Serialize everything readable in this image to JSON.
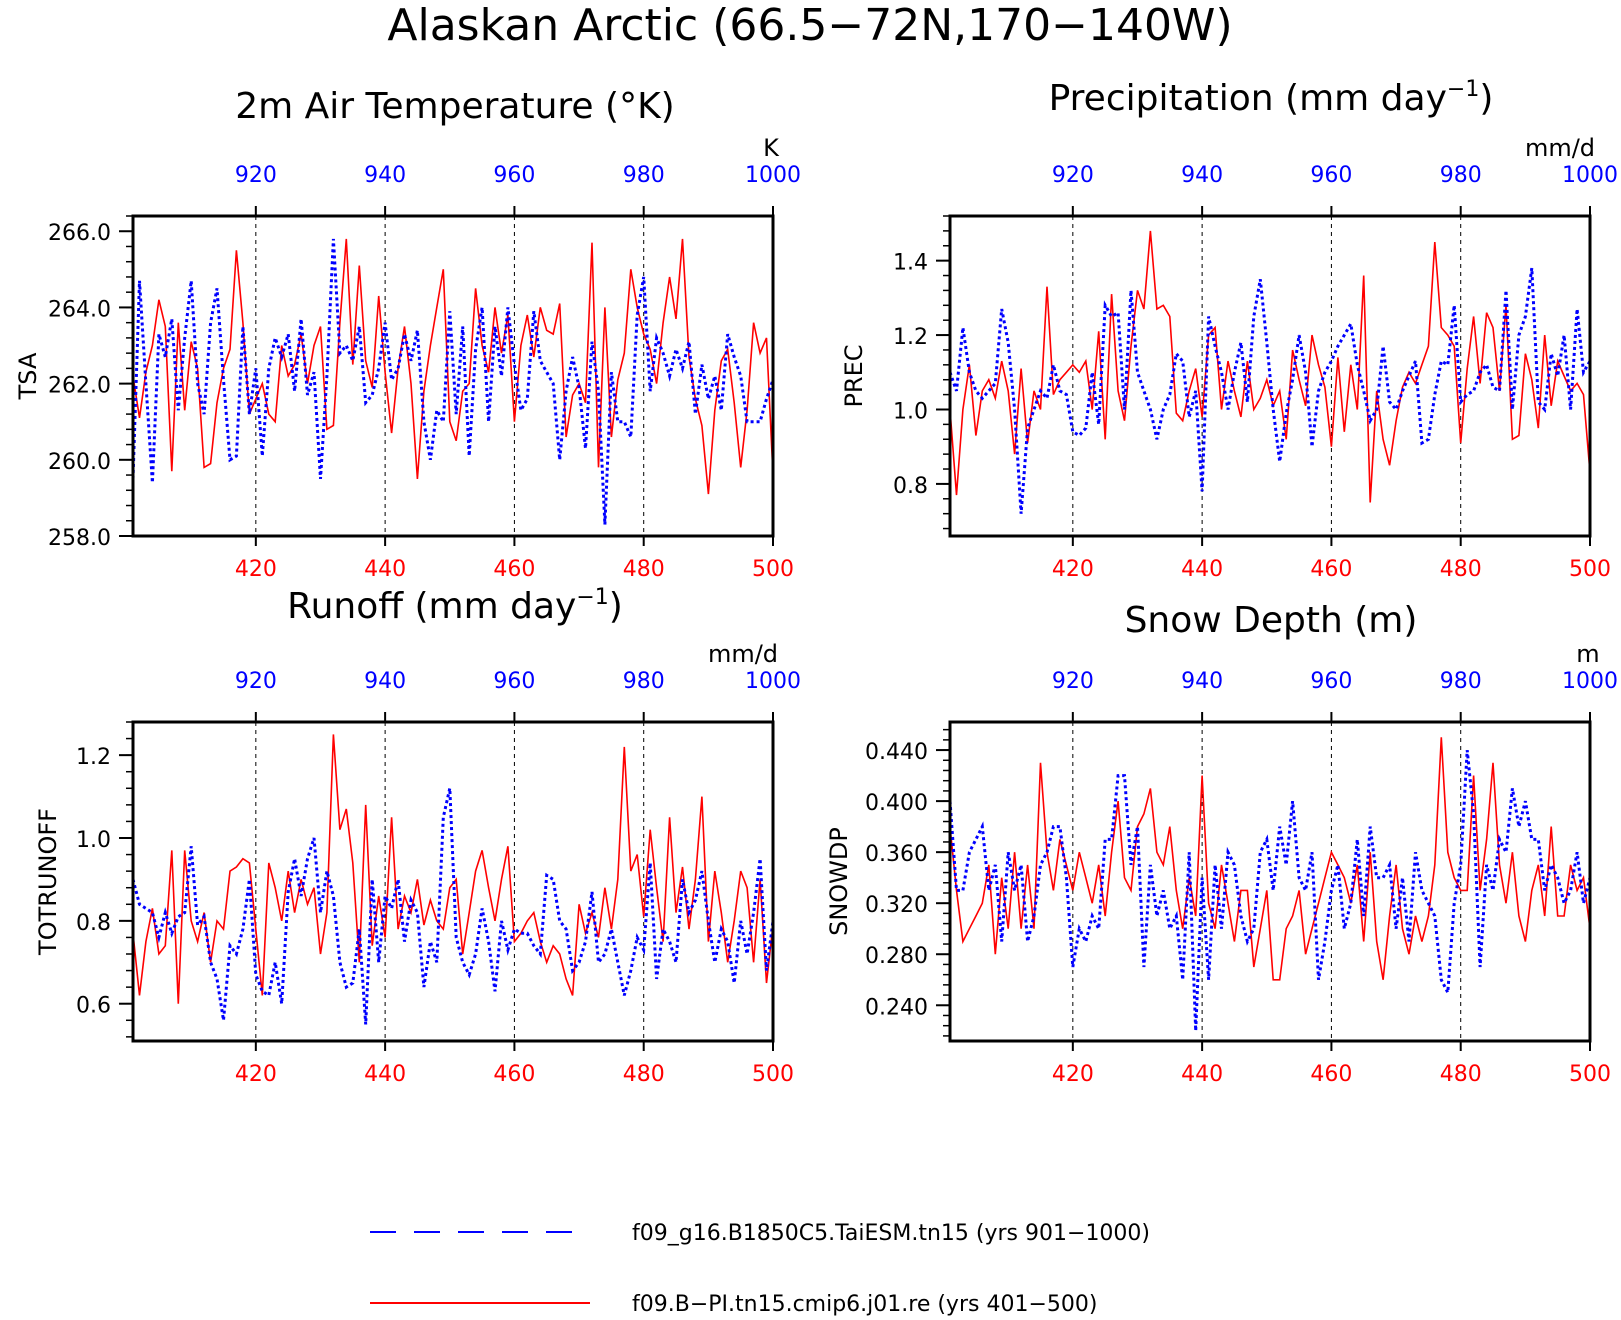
{
  "figure_title": "Alaskan Arctic (66.5−72N,170−140W)",
  "colors": {
    "red_series": "#ff0000",
    "blue_series": "#0000ff",
    "frame": "#000000"
  },
  "legend": [
    {
      "label": "f09_g16.B1850C5.TaiESM.tn15 (yrs 901−1000)",
      "color": "#0000ff",
      "style": "dashed"
    },
    {
      "label": "f09.B−PI.tn15.cmip6.j01.re (yrs 401−500)",
      "color": "#ff0000",
      "style": "solid"
    }
  ],
  "chart_data": [
    {
      "type": "line",
      "title": "2m Air Temperature (°K)",
      "ylabel": "TSA",
      "unit_label": "K",
      "ylim": [
        258.0,
        266.4
      ],
      "yticks": [
        258.0,
        260.0,
        262.0,
        264.0,
        266.0
      ],
      "ytick_labels": [
        "258.0",
        "260.0",
        "262.0",
        "264.0",
        "266.0"
      ],
      "bottom_axis": {
        "range": [
          401,
          500
        ],
        "ticks": [
          420,
          440,
          460,
          480,
          500
        ],
        "color": "#ff0000"
      },
      "top_axis": {
        "range": [
          901,
          1000
        ],
        "ticks": [
          920,
          940,
          960,
          980,
          1000
        ],
        "color": "#0000ff"
      },
      "series": [
        {
          "name": "f09.B−PI.tn15.cmip6.j01.re (yrs 401−500)",
          "color": "#ff0000",
          "style": "solid",
          "values": [
            262.2,
            261.1,
            262.3,
            263.0,
            264.2,
            263.5,
            259.7,
            263.6,
            261.3,
            263.1,
            262.4,
            259.8,
            259.9,
            261.5,
            262.4,
            262.9,
            265.5,
            263.6,
            261.2,
            261.6,
            262.0,
            261.2,
            261.0,
            263.0,
            262.2,
            262.5,
            263.3,
            262.0,
            263.0,
            263.5,
            260.8,
            260.9,
            263.6,
            265.8,
            262.5,
            265.1,
            262.6,
            261.9,
            264.3,
            262.3,
            260.7,
            262.4,
            263.5,
            262.0,
            259.5,
            261.8,
            263.0,
            264.0,
            265.0,
            261.0,
            260.5,
            261.8,
            262.0,
            264.5,
            263.0,
            262.3,
            264.0,
            262.8,
            263.8,
            261.0,
            263.0,
            263.8,
            262.7,
            264.0,
            263.4,
            263.3,
            264.1,
            260.6,
            261.7,
            262.0,
            261.5,
            265.7,
            259.8,
            264.0,
            260.6,
            262.1,
            262.8,
            265.0,
            264.0,
            263.3,
            262.9,
            262.0,
            263.6,
            264.8,
            263.7,
            265.8,
            262.7,
            261.6,
            260.9,
            259.1,
            261.3,
            262.6,
            262.9,
            261.5,
            259.8,
            261.3,
            263.6,
            262.8,
            263.2,
            259.6
          ]
        },
        {
          "name": "f09_g16.B1850C5.TaiESM.tn15 (yrs 901−1000)",
          "color": "#0000ff",
          "style": "dotted",
          "values": [
            259.5,
            264.7,
            262.0,
            259.4,
            263.3,
            262.7,
            263.7,
            261.3,
            263.2,
            264.7,
            262.0,
            261.2,
            263.6,
            264.5,
            262.1,
            260.0,
            260.1,
            263.5,
            261.2,
            262.4,
            260.1,
            262.4,
            263.2,
            262.7,
            263.3,
            261.8,
            263.7,
            261.7,
            262.3,
            259.5,
            262.2,
            265.8,
            262.8,
            263.0,
            262.6,
            263.5,
            261.5,
            261.7,
            262.4,
            263.6,
            262.1,
            262.4,
            263.3,
            262.6,
            263.4,
            261.0,
            260.0,
            261.3,
            261.0,
            263.9,
            261.2,
            263.5,
            260.1,
            262.9,
            264.0,
            261.0,
            263.5,
            262.2,
            264.0,
            262.5,
            261.3,
            261.6,
            263.9,
            262.6,
            262.3,
            262.0,
            260.0,
            261.8,
            262.7,
            261.9,
            260.3,
            263.1,
            261.8,
            258.3,
            262.3,
            261.0,
            261.0,
            260.6,
            263.8,
            264.8,
            261.8,
            263.2,
            262.8,
            262.2,
            262.9,
            262.4,
            263.1,
            261.2,
            262.5,
            261.6,
            262.2,
            261.3,
            263.3,
            262.7,
            262.2,
            261.0,
            261.0,
            261.0,
            261.6,
            262.1
          ]
        }
      ]
    },
    {
      "type": "line",
      "title": "Precipitation (mm day",
      "title_sup": "−1",
      "title_end": ")",
      "ylabel": "PREC",
      "unit_label": "mm/d",
      "ylim": [
        0.66,
        1.52
      ],
      "yticks": [
        0.8,
        1.0,
        1.2,
        1.4
      ],
      "ytick_labels": [
        "0.8",
        "1.0",
        "1.2",
        "1.4"
      ],
      "bottom_axis": {
        "range": [
          401,
          500
        ],
        "ticks": [
          420,
          440,
          460,
          480,
          500
        ],
        "color": "#ff0000"
      },
      "top_axis": {
        "range": [
          901,
          1000
        ],
        "ticks": [
          920,
          940,
          960,
          980,
          1000
        ],
        "color": "#0000ff"
      },
      "series": [
        {
          "name": "f09.B−PI.tn15.cmip6.j01.re (yrs 401−500)",
          "color": "#ff0000",
          "style": "solid",
          "values": [
            1.0,
            0.77,
            1.0,
            1.12,
            0.93,
            1.05,
            1.08,
            1.03,
            1.13,
            1.05,
            0.88,
            1.11,
            0.91,
            1.05,
            1.0,
            1.33,
            1.04,
            1.08,
            1.1,
            1.12,
            1.1,
            1.13,
            1.0,
            1.21,
            0.92,
            1.31,
            1.05,
            0.97,
            1.17,
            1.32,
            1.27,
            1.48,
            1.27,
            1.28,
            1.25,
            0.99,
            0.97,
            1.05,
            1.11,
            0.98,
            1.2,
            1.22,
            1.0,
            1.13,
            1.05,
            0.98,
            1.13,
            1.0,
            1.03,
            1.08,
            1.01,
            1.05,
            0.92,
            1.16,
            1.08,
            1.01,
            1.2,
            1.12,
            1.06,
            0.9,
            1.14,
            0.94,
            1.12,
            1.0,
            1.36,
            0.75,
            1.05,
            0.92,
            0.85,
            0.97,
            1.06,
            1.1,
            1.07,
            1.12,
            1.17,
            1.45,
            1.22,
            1.2,
            1.17,
            0.91,
            1.11,
            1.25,
            1.07,
            1.26,
            1.22,
            1.05,
            1.28,
            0.92,
            0.93,
            1.15,
            1.08,
            0.95,
            1.2,
            1.01,
            1.13,
            1.09,
            1.05,
            1.07,
            1.04,
            0.83
          ]
        },
        {
          "name": "f09_g16.B1850C5.TaiESM.tn15 (yrs 901−1000)",
          "color": "#0000ff",
          "style": "dotted",
          "values": [
            1.1,
            1.05,
            1.22,
            1.1,
            1.05,
            1.03,
            1.05,
            1.07,
            1.27,
            1.18,
            1.0,
            0.72,
            0.95,
            1.0,
            1.05,
            1.03,
            1.12,
            1.05,
            1.04,
            0.94,
            0.93,
            0.95,
            1.1,
            0.96,
            1.28,
            1.25,
            1.26,
            1.0,
            1.32,
            1.1,
            1.05,
            1.0,
            0.92,
            1.0,
            1.04,
            1.15,
            1.13,
            0.98,
            1.05,
            0.78,
            1.25,
            1.17,
            1.1,
            1.0,
            1.1,
            1.18,
            1.02,
            1.25,
            1.35,
            1.18,
            1.0,
            0.86,
            0.99,
            1.08,
            1.2,
            1.1,
            0.9,
            1.05,
            1.1,
            1.13,
            1.17,
            1.2,
            1.23,
            1.12,
            1.05,
            0.97,
            1.0,
            1.17,
            1.02,
            1.0,
            1.05,
            1.09,
            1.13,
            0.91,
            0.92,
            1.04,
            1.13,
            1.12,
            1.28,
            1.02,
            1.04,
            1.05,
            1.1,
            1.12,
            1.06,
            1.05,
            1.32,
            1.0,
            1.2,
            1.25,
            1.38,
            1.02,
            1.0,
            1.15,
            1.09,
            1.2,
            1.0,
            1.27,
            1.1,
            1.13
          ]
        }
      ]
    },
    {
      "type": "line",
      "title": "Runoff (mm day",
      "title_sup": "−1",
      "title_end": ")",
      "ylabel": "TOTRUNOFF",
      "unit_label": "mm/d",
      "ylim": [
        0.51,
        1.28
      ],
      "yticks": [
        0.6,
        0.8,
        1.0,
        1.2
      ],
      "ytick_labels": [
        "0.6",
        "0.8",
        "1.0",
        "1.2"
      ],
      "bottom_axis": {
        "range": [
          401,
          500
        ],
        "ticks": [
          420,
          440,
          460,
          480,
          500
        ],
        "color": "#ff0000"
      },
      "top_axis": {
        "range": [
          901,
          1000
        ],
        "ticks": [
          920,
          940,
          960,
          980,
          1000
        ],
        "color": "#0000ff"
      },
      "series": [
        {
          "name": "f09.B−PI.tn15.cmip6.j01.re (yrs 401−500)",
          "color": "#ff0000",
          "style": "solid",
          "values": [
            0.77,
            0.62,
            0.75,
            0.83,
            0.72,
            0.74,
            0.97,
            0.6,
            0.97,
            0.8,
            0.75,
            0.82,
            0.7,
            0.8,
            0.78,
            0.92,
            0.93,
            0.95,
            0.94,
            0.78,
            0.62,
            0.94,
            0.88,
            0.8,
            0.92,
            0.82,
            0.9,
            0.84,
            0.88,
            0.72,
            0.82,
            1.25,
            1.02,
            1.07,
            0.94,
            0.7,
            1.08,
            0.74,
            0.86,
            0.76,
            1.05,
            0.78,
            0.86,
            0.82,
            0.9,
            0.79,
            0.85,
            0.8,
            0.78,
            0.88,
            0.9,
            0.72,
            0.82,
            0.92,
            0.97,
            0.88,
            0.8,
            0.9,
            0.98,
            0.75,
            0.77,
            0.8,
            0.82,
            0.75,
            0.7,
            0.74,
            0.72,
            0.66,
            0.62,
            0.84,
            0.77,
            0.82,
            0.76,
            0.88,
            0.78,
            0.9,
            1.22,
            0.92,
            0.96,
            0.81,
            1.02,
            0.88,
            0.75,
            1.05,
            0.82,
            0.93,
            0.78,
            0.9,
            1.1,
            0.75,
            0.92,
            0.82,
            0.7,
            0.8,
            0.92,
            0.88,
            0.7,
            0.9,
            0.65,
            0.79
          ]
        },
        {
          "name": "f09_g16.B1850C5.TaiESM.tn15 (yrs 901−1000)",
          "color": "#0000ff",
          "style": "dotted",
          "values": [
            0.9,
            0.84,
            0.83,
            0.82,
            0.76,
            0.82,
            0.77,
            0.81,
            0.82,
            0.98,
            0.79,
            0.81,
            0.7,
            0.66,
            0.56,
            0.74,
            0.72,
            0.78,
            0.9,
            0.67,
            0.63,
            0.62,
            0.7,
            0.6,
            0.87,
            0.95,
            0.86,
            0.95,
            1.0,
            0.82,
            0.92,
            0.86,
            0.7,
            0.64,
            0.65,
            0.78,
            0.55,
            0.9,
            0.7,
            0.86,
            0.83,
            0.9,
            0.75,
            0.85,
            0.82,
            0.64,
            0.75,
            0.7,
            1.05,
            1.12,
            0.76,
            0.7,
            0.67,
            0.72,
            0.83,
            0.75,
            0.63,
            0.8,
            0.73,
            0.78,
            0.77,
            0.77,
            0.74,
            0.72,
            0.91,
            0.9,
            0.8,
            0.78,
            0.68,
            0.7,
            0.75,
            0.87,
            0.7,
            0.72,
            0.78,
            0.7,
            0.62,
            0.68,
            0.76,
            0.73,
            0.94,
            0.66,
            0.78,
            0.75,
            0.7,
            0.9,
            0.82,
            0.85,
            0.92,
            0.8,
            0.7,
            0.78,
            0.75,
            0.65,
            0.8,
            0.72,
            0.82,
            0.95,
            0.68,
            0.8
          ]
        }
      ]
    },
    {
      "type": "line",
      "title": "Snow Depth (m)",
      "ylabel": "SNOWDP",
      "unit_label": "m",
      "ylim": [
        0.212,
        0.462
      ],
      "yticks": [
        0.24,
        0.28,
        0.32,
        0.36,
        0.4,
        0.44
      ],
      "ytick_labels": [
        "0.240",
        "0.280",
        "0.320",
        "0.360",
        "0.400",
        "0.440"
      ],
      "bottom_axis": {
        "range": [
          401,
          500
        ],
        "ticks": [
          420,
          440,
          460,
          480,
          500
        ],
        "color": "#ff0000"
      },
      "top_axis": {
        "range": [
          901,
          1000
        ],
        "ticks": [
          920,
          940,
          960,
          980,
          1000
        ],
        "color": "#0000ff"
      },
      "series": [
        {
          "name": "f09.B−PI.tn15.cmip6.j01.re (yrs 401−500)",
          "color": "#ff0000",
          "style": "solid",
          "values": [
            0.38,
            0.33,
            0.29,
            0.3,
            0.31,
            0.32,
            0.35,
            0.28,
            0.34,
            0.3,
            0.36,
            0.3,
            0.35,
            0.3,
            0.43,
            0.36,
            0.33,
            0.37,
            0.35,
            0.33,
            0.36,
            0.34,
            0.32,
            0.35,
            0.31,
            0.36,
            0.4,
            0.34,
            0.33,
            0.38,
            0.39,
            0.41,
            0.36,
            0.35,
            0.38,
            0.33,
            0.3,
            0.34,
            0.31,
            0.42,
            0.32,
            0.3,
            0.35,
            0.32,
            0.29,
            0.33,
            0.33,
            0.27,
            0.3,
            0.33,
            0.26,
            0.26,
            0.3,
            0.31,
            0.33,
            0.28,
            0.3,
            0.32,
            0.34,
            0.36,
            0.35,
            0.34,
            0.32,
            0.35,
            0.29,
            0.36,
            0.29,
            0.26,
            0.31,
            0.35,
            0.3,
            0.28,
            0.31,
            0.29,
            0.31,
            0.35,
            0.45,
            0.36,
            0.34,
            0.33,
            0.33,
            0.42,
            0.33,
            0.37,
            0.43,
            0.35,
            0.32,
            0.36,
            0.31,
            0.29,
            0.33,
            0.35,
            0.31,
            0.38,
            0.31,
            0.31,
            0.35,
            0.33,
            0.34,
            0.3
          ]
        },
        {
          "name": "f09_g16.B1850C5.TaiESM.tn15 (yrs 901−1000)",
          "color": "#0000ff",
          "style": "dotted",
          "values": [
            0.4,
            0.33,
            0.33,
            0.36,
            0.37,
            0.38,
            0.33,
            0.35,
            0.29,
            0.36,
            0.33,
            0.35,
            0.29,
            0.31,
            0.35,
            0.36,
            0.38,
            0.38,
            0.34,
            0.27,
            0.3,
            0.29,
            0.31,
            0.3,
            0.37,
            0.37,
            0.42,
            0.42,
            0.35,
            0.38,
            0.27,
            0.35,
            0.31,
            0.33,
            0.3,
            0.31,
            0.26,
            0.36,
            0.22,
            0.34,
            0.26,
            0.35,
            0.3,
            0.36,
            0.35,
            0.31,
            0.29,
            0.3,
            0.36,
            0.37,
            0.33,
            0.38,
            0.35,
            0.4,
            0.34,
            0.33,
            0.36,
            0.26,
            0.29,
            0.33,
            0.35,
            0.3,
            0.32,
            0.37,
            0.31,
            0.38,
            0.34,
            0.34,
            0.35,
            0.3,
            0.34,
            0.29,
            0.36,
            0.33,
            0.32,
            0.31,
            0.26,
            0.25,
            0.32,
            0.35,
            0.44,
            0.39,
            0.27,
            0.35,
            0.33,
            0.37,
            0.36,
            0.41,
            0.38,
            0.4,
            0.37,
            0.37,
            0.33,
            0.35,
            0.34,
            0.32,
            0.33,
            0.36,
            0.32,
            0.34
          ]
        }
      ]
    }
  ]
}
